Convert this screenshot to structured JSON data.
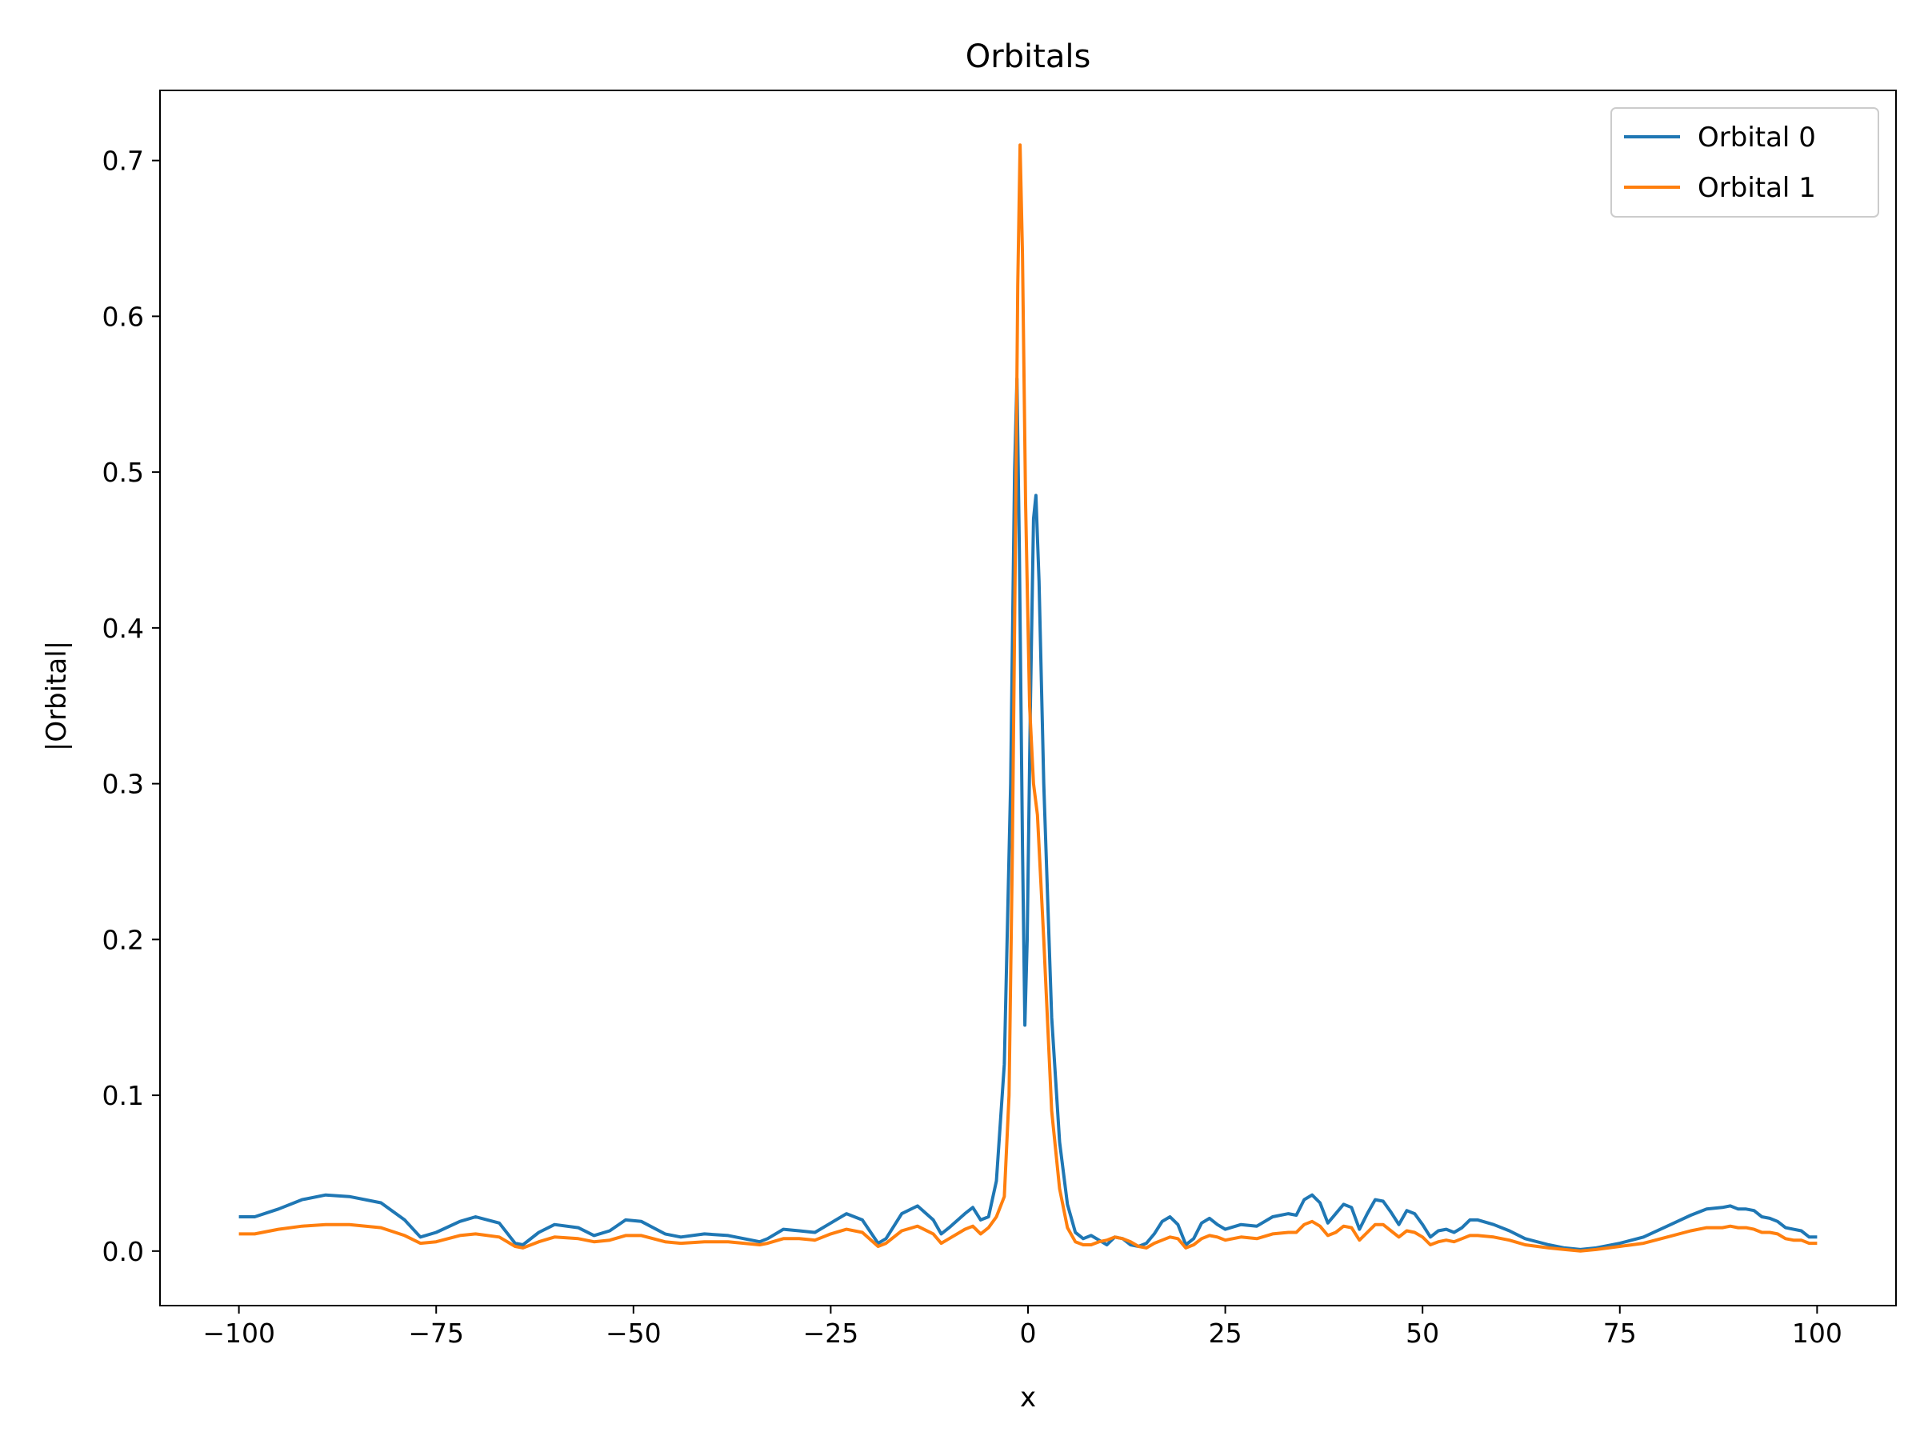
{
  "chart_data": {
    "type": "line",
    "title": "Orbitals",
    "xlabel": "x",
    "ylabel": "|Orbital|",
    "xlim": [
      -110,
      110
    ],
    "ylim": [
      -0.035,
      0.745
    ],
    "xticks": [
      -100,
      -75,
      -50,
      -25,
      0,
      25,
      50,
      75,
      100
    ],
    "xtick_labels": [
      "−100",
      "−75",
      "−50",
      "−25",
      "0",
      "25",
      "50",
      "75",
      "100"
    ],
    "yticks": [
      0.0,
      0.1,
      0.2,
      0.3,
      0.4,
      0.5,
      0.6,
      0.7
    ],
    "ytick_labels": [
      "0.0",
      "0.1",
      "0.2",
      "0.3",
      "0.4",
      "0.5",
      "0.6",
      "0.7"
    ],
    "grid": false,
    "legend_position": "top-right",
    "series": [
      {
        "name": "Orbital 0",
        "color": "#1f77b4",
        "points": [
          [
            -100,
            0.022
          ],
          [
            -98,
            0.022
          ],
          [
            -95,
            0.027
          ],
          [
            -92,
            0.033
          ],
          [
            -89,
            0.036
          ],
          [
            -86,
            0.035
          ],
          [
            -82,
            0.031
          ],
          [
            -79,
            0.02
          ],
          [
            -77,
            0.009
          ],
          [
            -75,
            0.012
          ],
          [
            -72,
            0.019
          ],
          [
            -70,
            0.022
          ],
          [
            -67,
            0.018
          ],
          [
            -65,
            0.005
          ],
          [
            -64,
            0.004
          ],
          [
            -62,
            0.012
          ],
          [
            -60,
            0.017
          ],
          [
            -57,
            0.015
          ],
          [
            -55,
            0.01
          ],
          [
            -53,
            0.013
          ],
          [
            -51,
            0.02
          ],
          [
            -49,
            0.019
          ],
          [
            -46,
            0.011
          ],
          [
            -44,
            0.009
          ],
          [
            -41,
            0.011
          ],
          [
            -38,
            0.01
          ],
          [
            -36,
            0.008
          ],
          [
            -34,
            0.006
          ],
          [
            -33,
            0.008
          ],
          [
            -31,
            0.014
          ],
          [
            -29,
            0.013
          ],
          [
            -27,
            0.012
          ],
          [
            -25,
            0.018
          ],
          [
            -23,
            0.024
          ],
          [
            -21,
            0.02
          ],
          [
            -19,
            0.005
          ],
          [
            -18,
            0.008
          ],
          [
            -16,
            0.024
          ],
          [
            -14,
            0.029
          ],
          [
            -12,
            0.02
          ],
          [
            -11,
            0.011
          ],
          [
            -10,
            0.015
          ],
          [
            -8,
            0.024
          ],
          [
            -7,
            0.028
          ],
          [
            -6,
            0.02
          ],
          [
            -5,
            0.022
          ],
          [
            -4,
            0.045
          ],
          [
            -3,
            0.12
          ],
          [
            -2.2,
            0.3
          ],
          [
            -1.7,
            0.5
          ],
          [
            -1.4,
            0.56
          ],
          [
            -1.1,
            0.45
          ],
          [
            -0.7,
            0.26
          ],
          [
            -0.4,
            0.145
          ],
          [
            -0.1,
            0.2
          ],
          [
            0.3,
            0.35
          ],
          [
            0.7,
            0.47
          ],
          [
            1.0,
            0.485
          ],
          [
            1.4,
            0.43
          ],
          [
            2,
            0.3
          ],
          [
            3,
            0.15
          ],
          [
            4,
            0.07
          ],
          [
            5,
            0.03
          ],
          [
            6,
            0.012
          ],
          [
            7,
            0.008
          ],
          [
            8,
            0.01
          ],
          [
            9,
            0.007
          ],
          [
            10,
            0.004
          ],
          [
            11,
            0.009
          ],
          [
            12,
            0.008
          ],
          [
            13,
            0.004
          ],
          [
            14,
            0.003
          ],
          [
            15,
            0.005
          ],
          [
            16,
            0.011
          ],
          [
            17,
            0.019
          ],
          [
            18,
            0.022
          ],
          [
            19,
            0.017
          ],
          [
            20,
            0.004
          ],
          [
            21,
            0.008
          ],
          [
            22,
            0.018
          ],
          [
            23,
            0.021
          ],
          [
            24,
            0.017
          ],
          [
            25,
            0.014
          ],
          [
            27,
            0.017
          ],
          [
            29,
            0.016
          ],
          [
            31,
            0.022
          ],
          [
            33,
            0.024
          ],
          [
            34,
            0.023
          ],
          [
            35,
            0.033
          ],
          [
            36,
            0.036
          ],
          [
            37,
            0.031
          ],
          [
            38,
            0.018
          ],
          [
            39,
            0.024
          ],
          [
            40,
            0.03
          ],
          [
            41,
            0.028
          ],
          [
            42,
            0.014
          ],
          [
            43,
            0.024
          ],
          [
            44,
            0.033
          ],
          [
            45,
            0.032
          ],
          [
            46,
            0.025
          ],
          [
            47,
            0.017
          ],
          [
            48,
            0.026
          ],
          [
            49,
            0.024
          ],
          [
            50,
            0.017
          ],
          [
            51,
            0.009
          ],
          [
            52,
            0.013
          ],
          [
            53,
            0.014
          ],
          [
            54,
            0.012
          ],
          [
            55,
            0.015
          ],
          [
            56,
            0.02
          ],
          [
            57,
            0.02
          ],
          [
            59,
            0.017
          ],
          [
            61,
            0.013
          ],
          [
            63,
            0.008
          ],
          [
            66,
            0.004
          ],
          [
            68,
            0.002
          ],
          [
            70,
            0.001
          ],
          [
            72,
            0.002
          ],
          [
            75,
            0.005
          ],
          [
            78,
            0.009
          ],
          [
            81,
            0.016
          ],
          [
            84,
            0.023
          ],
          [
            86,
            0.027
          ],
          [
            88,
            0.028
          ],
          [
            89,
            0.029
          ],
          [
            90,
            0.027
          ],
          [
            91,
            0.027
          ],
          [
            92,
            0.026
          ],
          [
            93,
            0.022
          ],
          [
            94,
            0.021
          ],
          [
            95,
            0.019
          ],
          [
            96,
            0.015
          ],
          [
            97,
            0.014
          ],
          [
            98,
            0.013
          ],
          [
            99,
            0.009
          ],
          [
            100,
            0.009
          ]
        ]
      },
      {
        "name": "Orbital 1",
        "color": "#ff7f0e",
        "points": [
          [
            -100,
            0.011
          ],
          [
            -98,
            0.011
          ],
          [
            -95,
            0.014
          ],
          [
            -92,
            0.016
          ],
          [
            -89,
            0.017
          ],
          [
            -86,
            0.017
          ],
          [
            -82,
            0.015
          ],
          [
            -79,
            0.01
          ],
          [
            -77,
            0.005
          ],
          [
            -75,
            0.006
          ],
          [
            -72,
            0.01
          ],
          [
            -70,
            0.011
          ],
          [
            -67,
            0.009
          ],
          [
            -65,
            0.003
          ],
          [
            -64,
            0.002
          ],
          [
            -62,
            0.006
          ],
          [
            -60,
            0.009
          ],
          [
            -57,
            0.008
          ],
          [
            -55,
            0.006
          ],
          [
            -53,
            0.007
          ],
          [
            -51,
            0.01
          ],
          [
            -49,
            0.01
          ],
          [
            -46,
            0.006
          ],
          [
            -44,
            0.005
          ],
          [
            -41,
            0.006
          ],
          [
            -38,
            0.006
          ],
          [
            -36,
            0.005
          ],
          [
            -34,
            0.004
          ],
          [
            -33,
            0.005
          ],
          [
            -31,
            0.008
          ],
          [
            -29,
            0.008
          ],
          [
            -27,
            0.007
          ],
          [
            -25,
            0.011
          ],
          [
            -23,
            0.014
          ],
          [
            -21,
            0.012
          ],
          [
            -19,
            0.003
          ],
          [
            -18,
            0.005
          ],
          [
            -16,
            0.013
          ],
          [
            -14,
            0.016
          ],
          [
            -12,
            0.011
          ],
          [
            -11,
            0.005
          ],
          [
            -10,
            0.008
          ],
          [
            -8,
            0.014
          ],
          [
            -7,
            0.016
          ],
          [
            -6,
            0.011
          ],
          [
            -5,
            0.015
          ],
          [
            -4,
            0.022
          ],
          [
            -3,
            0.035
          ],
          [
            -2.4,
            0.1
          ],
          [
            -2,
            0.25
          ],
          [
            -1.6,
            0.45
          ],
          [
            -1.3,
            0.62
          ],
          [
            -1.0,
            0.71
          ],
          [
            -0.7,
            0.64
          ],
          [
            -0.3,
            0.48
          ],
          [
            0.2,
            0.35
          ],
          [
            0.7,
            0.3
          ],
          [
            1.2,
            0.28
          ],
          [
            2,
            0.2
          ],
          [
            3,
            0.09
          ],
          [
            4,
            0.04
          ],
          [
            5,
            0.015
          ],
          [
            6,
            0.006
          ],
          [
            7,
            0.004
          ],
          [
            8,
            0.004
          ],
          [
            9,
            0.006
          ],
          [
            10,
            0.007
          ],
          [
            11,
            0.009
          ],
          [
            12,
            0.008
          ],
          [
            13,
            0.006
          ],
          [
            14,
            0.003
          ],
          [
            15,
            0.002
          ],
          [
            16,
            0.005
          ],
          [
            17,
            0.007
          ],
          [
            18,
            0.009
          ],
          [
            19,
            0.008
          ],
          [
            20,
            0.002
          ],
          [
            21,
            0.004
          ],
          [
            22,
            0.008
          ],
          [
            23,
            0.01
          ],
          [
            24,
            0.009
          ],
          [
            25,
            0.007
          ],
          [
            27,
            0.009
          ],
          [
            29,
            0.008
          ],
          [
            31,
            0.011
          ],
          [
            33,
            0.012
          ],
          [
            34,
            0.012
          ],
          [
            35,
            0.017
          ],
          [
            36,
            0.019
          ],
          [
            37,
            0.016
          ],
          [
            38,
            0.01
          ],
          [
            39,
            0.012
          ],
          [
            40,
            0.016
          ],
          [
            41,
            0.015
          ],
          [
            42,
            0.007
          ],
          [
            43,
            0.012
          ],
          [
            44,
            0.017
          ],
          [
            45,
            0.017
          ],
          [
            46,
            0.013
          ],
          [
            47,
            0.009
          ],
          [
            48,
            0.013
          ],
          [
            49,
            0.012
          ],
          [
            50,
            0.009
          ],
          [
            51,
            0.004
          ],
          [
            52,
            0.006
          ],
          [
            53,
            0.007
          ],
          [
            54,
            0.006
          ],
          [
            55,
            0.008
          ],
          [
            56,
            0.01
          ],
          [
            57,
            0.01
          ],
          [
            59,
            0.009
          ],
          [
            61,
            0.007
          ],
          [
            63,
            0.004
          ],
          [
            66,
            0.002
          ],
          [
            68,
            0.001
          ],
          [
            70,
            0.0
          ],
          [
            72,
            0.001
          ],
          [
            75,
            0.003
          ],
          [
            78,
            0.005
          ],
          [
            81,
            0.009
          ],
          [
            84,
            0.013
          ],
          [
            86,
            0.015
          ],
          [
            88,
            0.015
          ],
          [
            89,
            0.016
          ],
          [
            90,
            0.015
          ],
          [
            91,
            0.015
          ],
          [
            92,
            0.014
          ],
          [
            93,
            0.012
          ],
          [
            94,
            0.012
          ],
          [
            95,
            0.011
          ],
          [
            96,
            0.008
          ],
          [
            97,
            0.007
          ],
          [
            98,
            0.007
          ],
          [
            99,
            0.005
          ],
          [
            100,
            0.005
          ]
        ]
      }
    ]
  }
}
